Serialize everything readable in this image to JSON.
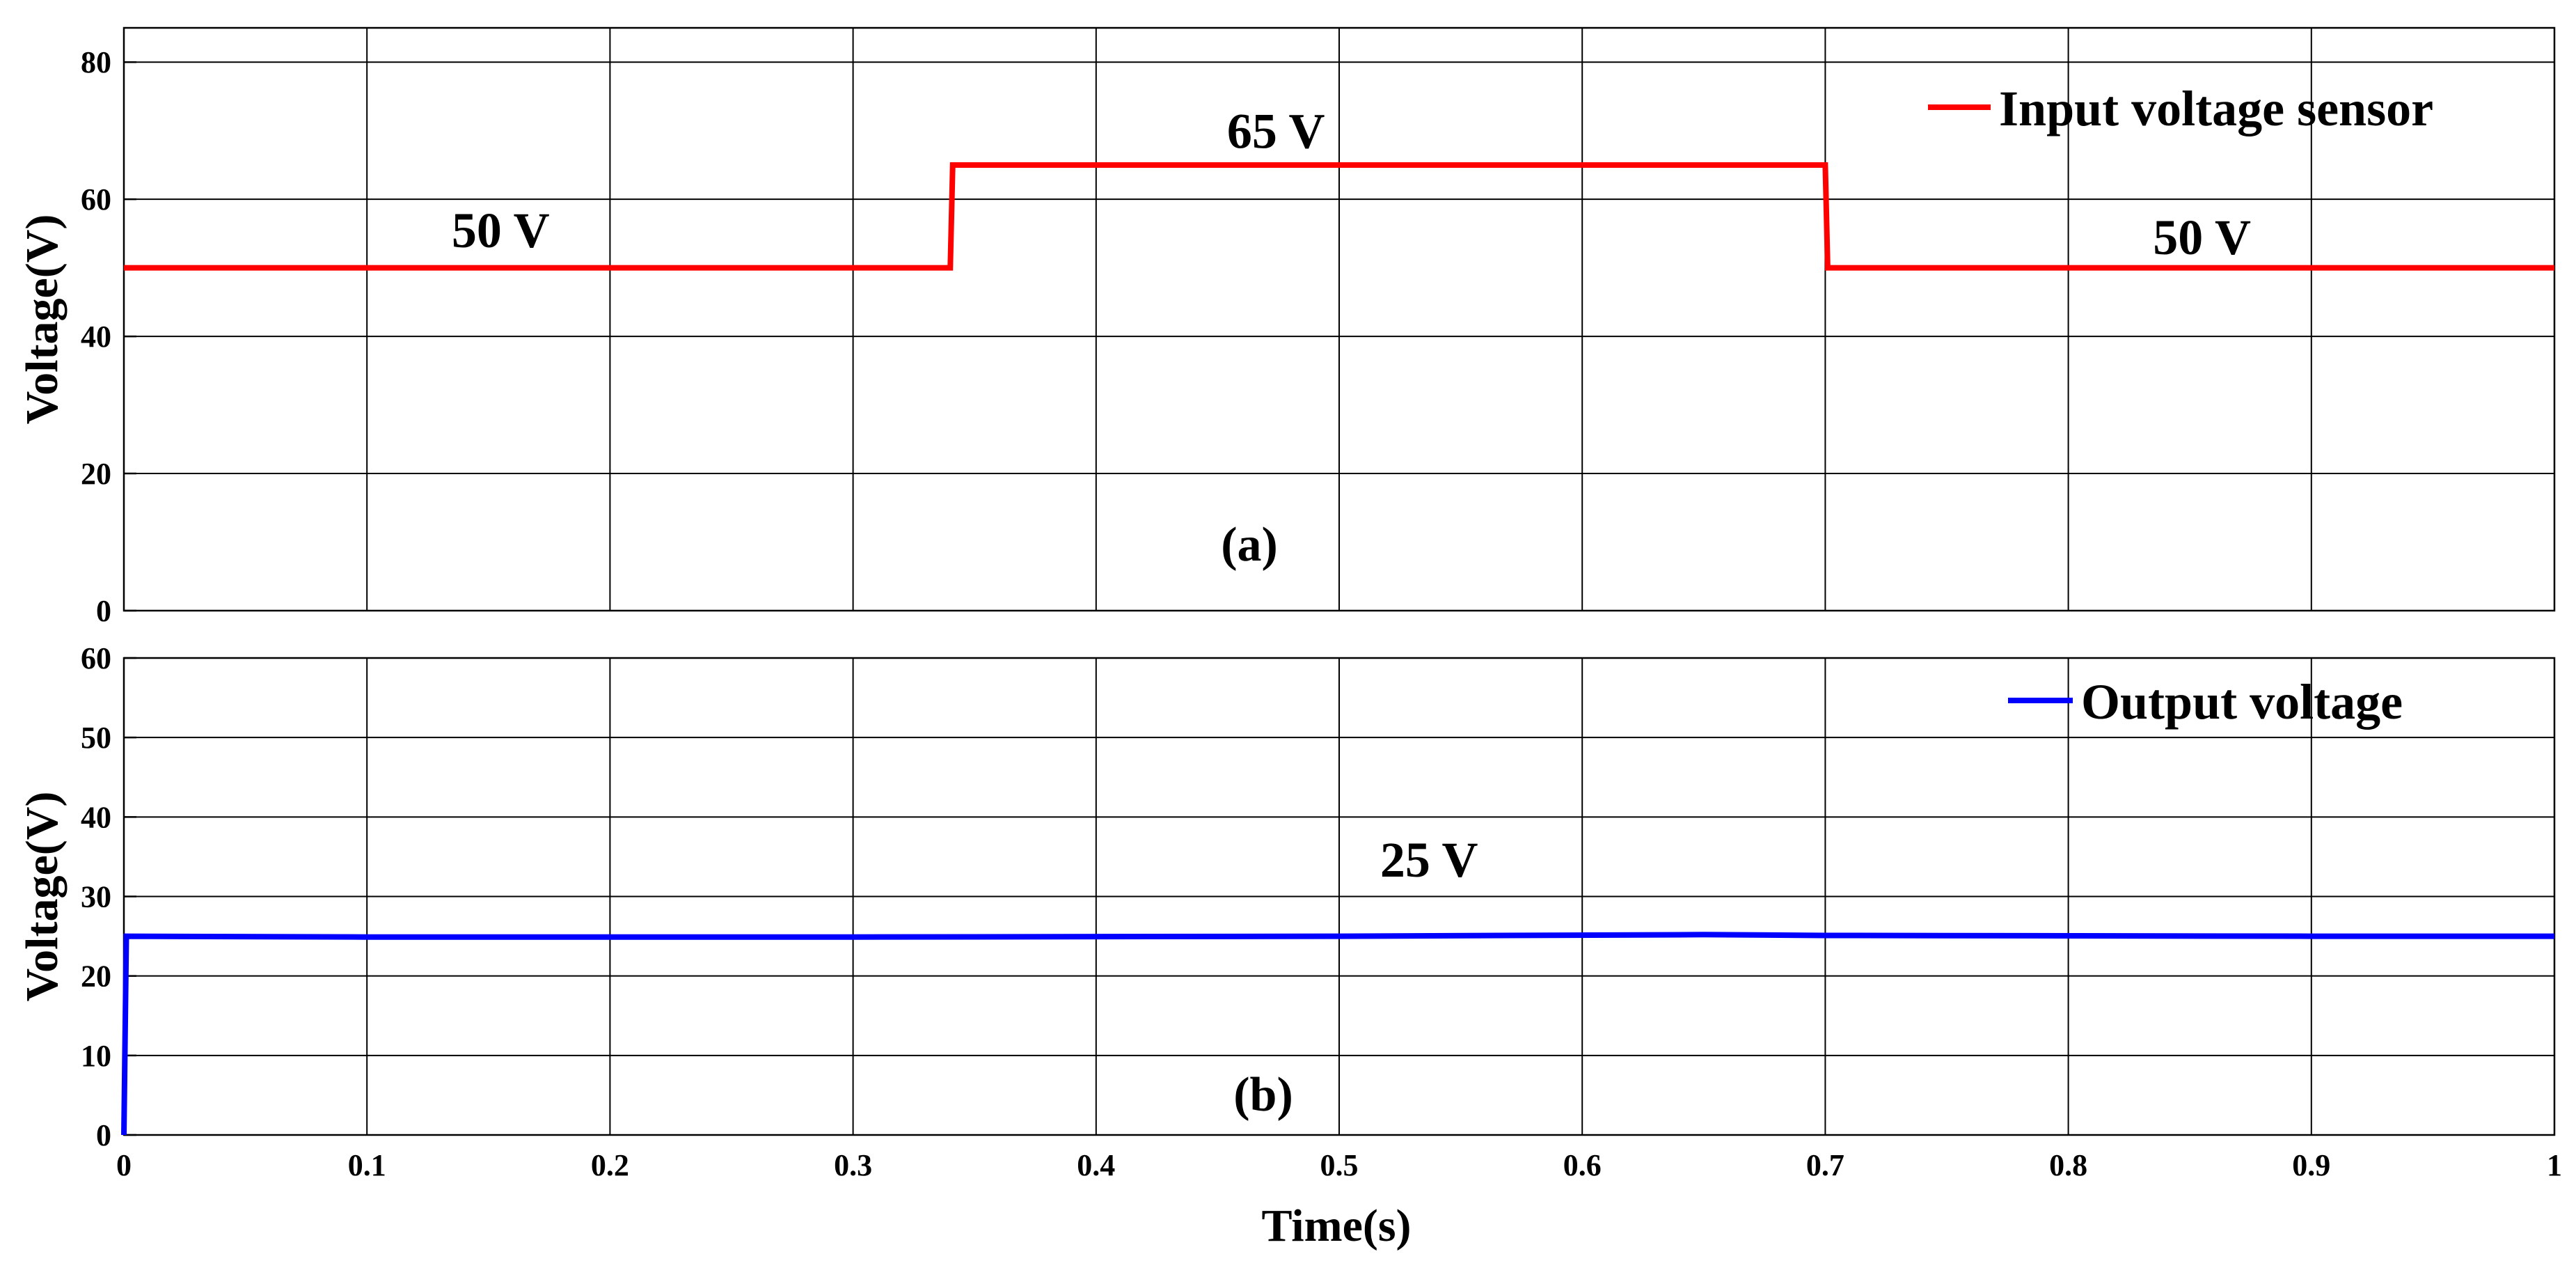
{
  "chart_data": [
    {
      "type": "line",
      "panel_label": "(a)",
      "ylabel": "Voltage(V)",
      "xlim": [
        0,
        1
      ],
      "ylim": [
        0,
        85
      ],
      "x_ticks": [
        0,
        0.1,
        0.2,
        0.3,
        0.4,
        0.5,
        0.6,
        0.7,
        0.8,
        0.9,
        1
      ],
      "y_ticks": [
        0,
        20,
        40,
        60,
        80
      ],
      "y_tick_labels": [
        "0",
        "20",
        "40",
        "60",
        "80"
      ],
      "grid": true,
      "legend_position": "top-right",
      "series": [
        {
          "name": "Input voltage sensor",
          "color": "#ff0000",
          "x": [
            0,
            0.34,
            0.341,
            0.7,
            0.701,
            1
          ],
          "y": [
            50,
            50,
            65,
            65,
            50,
            50
          ]
        }
      ],
      "annotations": [
        {
          "text": "50 V",
          "x": 0.155,
          "y": 53
        },
        {
          "text": "65 V",
          "x": 0.474,
          "y": 67.5
        },
        {
          "text": "50 V",
          "x": 0.855,
          "y": 52
        }
      ]
    },
    {
      "type": "line",
      "panel_label": "(b)",
      "xlabel": "Time(s)",
      "ylabel": "Voltage(V)",
      "xlim": [
        0,
        1
      ],
      "ylim": [
        0,
        60
      ],
      "x_ticks": [
        0,
        0.1,
        0.2,
        0.3,
        0.4,
        0.5,
        0.6,
        0.7,
        0.8,
        0.9,
        1
      ],
      "x_tick_labels": [
        "0",
        "0.1",
        "0.2",
        "0.3",
        "0.4",
        "0.5",
        "0.6",
        "0.7",
        "0.8",
        "0.9",
        "1"
      ],
      "y_ticks": [
        0,
        10,
        20,
        30,
        40,
        50,
        60
      ],
      "y_tick_labels": [
        "0",
        "10",
        "20",
        "30",
        "40",
        "50",
        "60"
      ],
      "grid": true,
      "legend_position": "top-right",
      "series": [
        {
          "name": "Output voltage",
          "color": "#0000ff",
          "x": [
            0,
            0.001,
            0.1,
            0.3,
            0.5,
            0.65,
            0.7,
            0.9,
            1
          ],
          "y": [
            0,
            25,
            24.9,
            24.9,
            25,
            25.2,
            25.1,
            25,
            25
          ]
        }
      ],
      "annotations": [
        {
          "text": "25 V",
          "x": 0.537,
          "y": 32.5
        }
      ]
    }
  ]
}
